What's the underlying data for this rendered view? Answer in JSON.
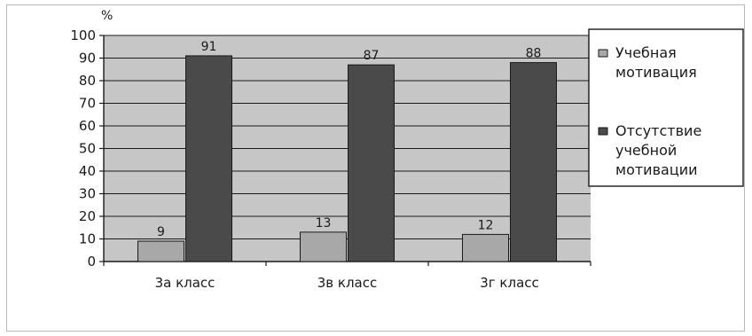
{
  "chart_data": {
    "type": "bar",
    "title": "",
    "xlabel": "",
    "ylabel": "%",
    "ylim": [
      0,
      100
    ],
    "yticks": [
      0,
      10,
      20,
      30,
      40,
      50,
      60,
      70,
      80,
      90,
      100
    ],
    "grid": true,
    "legend_position": "right",
    "categories": [
      "3а класс",
      "3в класс",
      "3г класс"
    ],
    "series": [
      {
        "name": "Учебная мотивация",
        "legend_lines": [
          "Учебная",
          "мотивация"
        ],
        "color": "#a8a8a8",
        "values": [
          9,
          13,
          12
        ]
      },
      {
        "name": "Отсутствие учебной мотивации",
        "legend_lines": [
          "Отсутствие",
          "учебной",
          "мотивации"
        ],
        "color": "#4a4a4a",
        "values": [
          91,
          87,
          88
        ]
      }
    ],
    "plot_background": "#c6c6c6"
  }
}
